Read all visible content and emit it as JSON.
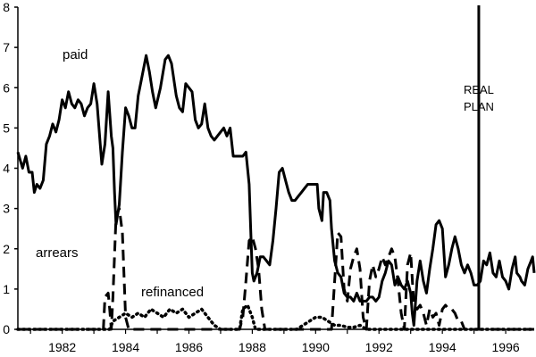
{
  "chart_data": {
    "type": "line",
    "title": "",
    "xlabel": "",
    "ylabel": "",
    "xlim": [
      1980.6,
      1996.9
    ],
    "ylim": [
      0,
      8
    ],
    "x_ticks": [
      1982,
      1984,
      1986,
      1988,
      1990,
      1992,
      1994,
      1996
    ],
    "y_ticks": [
      0,
      1,
      2,
      3,
      4,
      5,
      6,
      7,
      8
    ],
    "grid": false,
    "legend": "none",
    "series": [
      {
        "name": "paid",
        "style": "solid",
        "color": "#000000",
        "points": [
          [
            1980.6,
            4.4
          ],
          [
            1980.75,
            4.0
          ],
          [
            1980.85,
            4.3
          ],
          [
            1980.95,
            3.9
          ],
          [
            1981.05,
            3.9
          ],
          [
            1981.12,
            3.4
          ],
          [
            1981.2,
            3.6
          ],
          [
            1981.3,
            3.5
          ],
          [
            1981.4,
            3.7
          ],
          [
            1981.5,
            4.6
          ],
          [
            1981.6,
            4.8
          ],
          [
            1981.7,
            5.1
          ],
          [
            1981.8,
            4.9
          ],
          [
            1981.9,
            5.2
          ],
          [
            1982.0,
            5.7
          ],
          [
            1982.1,
            5.5
          ],
          [
            1982.2,
            5.9
          ],
          [
            1982.3,
            5.6
          ],
          [
            1982.4,
            5.5
          ],
          [
            1982.5,
            5.7
          ],
          [
            1982.6,
            5.6
          ],
          [
            1982.7,
            5.3
          ],
          [
            1982.8,
            5.5
          ],
          [
            1982.9,
            5.6
          ],
          [
            1983.0,
            6.1
          ],
          [
            1983.1,
            5.6
          ],
          [
            1983.2,
            4.6
          ],
          [
            1983.25,
            4.1
          ],
          [
            1983.35,
            4.6
          ],
          [
            1983.45,
            5.9
          ],
          [
            1983.55,
            4.8
          ],
          [
            1983.6,
            4.5
          ],
          [
            1983.65,
            3.4
          ],
          [
            1983.7,
            2.6
          ],
          [
            1983.8,
            3.1
          ],
          [
            1983.9,
            4.4
          ],
          [
            1984.0,
            5.5
          ],
          [
            1984.1,
            5.3
          ],
          [
            1984.2,
            5.0
          ],
          [
            1984.3,
            5.0
          ],
          [
            1984.4,
            5.8
          ],
          [
            1984.5,
            6.2
          ],
          [
            1984.65,
            6.8
          ],
          [
            1984.75,
            6.4
          ],
          [
            1984.85,
            5.9
          ],
          [
            1984.95,
            5.5
          ],
          [
            1985.1,
            6.0
          ],
          [
            1985.25,
            6.7
          ],
          [
            1985.35,
            6.8
          ],
          [
            1985.45,
            6.6
          ],
          [
            1985.6,
            5.8
          ],
          [
            1985.7,
            5.5
          ],
          [
            1985.8,
            5.4
          ],
          [
            1985.9,
            6.1
          ],
          [
            1986.0,
            6.0
          ],
          [
            1986.1,
            5.9
          ],
          [
            1986.2,
            5.2
          ],
          [
            1986.3,
            5.0
          ],
          [
            1986.4,
            5.1
          ],
          [
            1986.5,
            5.6
          ],
          [
            1986.6,
            5.0
          ],
          [
            1986.7,
            4.8
          ],
          [
            1986.8,
            4.7
          ],
          [
            1986.9,
            4.8
          ],
          [
            1987.0,
            4.9
          ],
          [
            1987.1,
            5.0
          ],
          [
            1987.2,
            4.8
          ],
          [
            1987.3,
            5.0
          ],
          [
            1987.4,
            4.3
          ],
          [
            1987.5,
            4.3
          ],
          [
            1987.6,
            4.3
          ],
          [
            1987.7,
            4.3
          ],
          [
            1987.8,
            4.4
          ],
          [
            1987.9,
            3.6
          ],
          [
            1987.95,
            2.5
          ],
          [
            1988.0,
            1.4
          ],
          [
            1988.05,
            1.2
          ],
          [
            1988.15,
            1.4
          ],
          [
            1988.25,
            1.8
          ],
          [
            1988.35,
            1.8
          ],
          [
            1988.45,
            1.7
          ],
          [
            1988.55,
            1.6
          ],
          [
            1988.65,
            2.2
          ],
          [
            1988.75,
            3.0
          ],
          [
            1988.85,
            3.9
          ],
          [
            1988.95,
            4.0
          ],
          [
            1989.05,
            3.7
          ],
          [
            1989.15,
            3.4
          ],
          [
            1989.25,
            3.2
          ],
          [
            1989.35,
            3.2
          ],
          [
            1989.45,
            3.3
          ],
          [
            1989.55,
            3.4
          ],
          [
            1989.65,
            3.5
          ],
          [
            1989.75,
            3.6
          ],
          [
            1989.85,
            3.6
          ],
          [
            1989.95,
            3.6
          ],
          [
            1990.05,
            3.6
          ],
          [
            1990.1,
            3.0
          ],
          [
            1990.2,
            2.7
          ],
          [
            1990.25,
            3.4
          ],
          [
            1990.35,
            3.4
          ],
          [
            1990.45,
            3.2
          ],
          [
            1990.5,
            2.5
          ],
          [
            1990.6,
            1.7
          ],
          [
            1990.7,
            1.4
          ],
          [
            1990.8,
            1.3
          ],
          [
            1990.9,
            0.9
          ],
          [
            1991.0,
            0.8
          ],
          [
            1991.1,
            0.8
          ],
          [
            1991.2,
            0.7
          ],
          [
            1991.3,
            0.9
          ],
          [
            1991.4,
            0.7
          ],
          [
            1991.5,
            0.7
          ],
          [
            1991.6,
            0.7
          ],
          [
            1991.7,
            0.8
          ],
          [
            1991.8,
            0.8
          ],
          [
            1991.9,
            0.7
          ],
          [
            1992.0,
            0.8
          ],
          [
            1992.1,
            1.2
          ],
          [
            1992.2,
            1.4
          ],
          [
            1992.3,
            1.7
          ],
          [
            1992.4,
            1.6
          ],
          [
            1992.5,
            1.1
          ],
          [
            1992.6,
            1.3
          ],
          [
            1992.7,
            1.1
          ],
          [
            1992.8,
            1.0
          ],
          [
            1992.9,
            1.2
          ],
          [
            1993.0,
            0.9
          ],
          [
            1993.05,
            0.4
          ],
          [
            1993.1,
            0.1
          ],
          [
            1993.2,
            1.2
          ],
          [
            1993.3,
            1.7
          ],
          [
            1993.4,
            1.2
          ],
          [
            1993.5,
            0.9
          ],
          [
            1993.6,
            1.5
          ],
          [
            1993.7,
            2.0
          ],
          [
            1993.8,
            2.6
          ],
          [
            1993.9,
            2.7
          ],
          [
            1994.0,
            2.5
          ],
          [
            1994.1,
            1.3
          ],
          [
            1994.2,
            1.6
          ],
          [
            1994.3,
            2.0
          ],
          [
            1994.4,
            2.3
          ],
          [
            1994.5,
            2.0
          ],
          [
            1994.6,
            1.6
          ],
          [
            1994.7,
            1.4
          ],
          [
            1994.8,
            1.6
          ],
          [
            1994.9,
            1.4
          ],
          [
            1995.0,
            1.1
          ],
          [
            1995.1,
            1.1
          ],
          [
            1995.2,
            1.2
          ],
          [
            1995.3,
            1.7
          ],
          [
            1995.4,
            1.6
          ],
          [
            1995.5,
            1.9
          ],
          [
            1995.6,
            1.4
          ],
          [
            1995.7,
            1.3
          ],
          [
            1995.8,
            1.7
          ],
          [
            1995.9,
            1.3
          ],
          [
            1996.0,
            1.2
          ],
          [
            1996.1,
            1.0
          ],
          [
            1996.2,
            1.5
          ],
          [
            1996.3,
            1.8
          ],
          [
            1996.35,
            1.4
          ],
          [
            1996.45,
            1.3
          ],
          [
            1996.5,
            1.2
          ],
          [
            1996.6,
            1.1
          ],
          [
            1996.7,
            1.5
          ],
          [
            1996.8,
            1.7
          ],
          [
            1996.85,
            1.8
          ],
          [
            1996.9,
            1.4
          ]
        ]
      },
      {
        "name": "arrears",
        "style": "dashed",
        "color": "#000000",
        "points": [
          [
            1980.6,
            0
          ],
          [
            1983.3,
            0
          ],
          [
            1983.35,
            0.8
          ],
          [
            1983.45,
            0.9
          ],
          [
            1983.5,
            0.5
          ],
          [
            1983.55,
            0
          ],
          [
            1983.6,
            0.8
          ],
          [
            1983.7,
            2.8
          ],
          [
            1983.8,
            3.0
          ],
          [
            1983.9,
            2.4
          ],
          [
            1984.0,
            0.3
          ],
          [
            1984.1,
            0
          ],
          [
            1987.6,
            0
          ],
          [
            1987.7,
            0.3
          ],
          [
            1987.8,
            1.2
          ],
          [
            1987.9,
            2.2
          ],
          [
            1988.0,
            2.3
          ],
          [
            1988.1,
            2.0
          ],
          [
            1988.2,
            1.5
          ],
          [
            1988.3,
            0.5
          ],
          [
            1988.4,
            0
          ],
          [
            1990.5,
            0
          ],
          [
            1990.6,
            1.2
          ],
          [
            1990.7,
            2.4
          ],
          [
            1990.8,
            2.3
          ],
          [
            1990.9,
            1.0
          ],
          [
            1991.0,
            0.7
          ],
          [
            1991.1,
            1.5
          ],
          [
            1991.2,
            1.8
          ],
          [
            1991.3,
            2.0
          ],
          [
            1991.4,
            1.5
          ],
          [
            1991.5,
            0.3
          ],
          [
            1991.6,
            0
          ],
          [
            1991.7,
            1.2
          ],
          [
            1991.8,
            1.6
          ],
          [
            1991.9,
            1.3
          ],
          [
            1992.0,
            1.5
          ],
          [
            1992.1,
            1.8
          ],
          [
            1992.2,
            1.6
          ],
          [
            1992.3,
            1.8
          ],
          [
            1992.4,
            2.0
          ],
          [
            1992.5,
            1.8
          ],
          [
            1992.6,
            1.2
          ],
          [
            1992.7,
            0.4
          ],
          [
            1992.8,
            0
          ],
          [
            1992.9,
            1.6
          ],
          [
            1993.0,
            1.9
          ],
          [
            1993.1,
            0.6
          ],
          [
            1993.2,
            0.5
          ],
          [
            1993.3,
            0.6
          ],
          [
            1993.4,
            0.4
          ],
          [
            1993.5,
            0.1
          ],
          [
            1993.6,
            0.5
          ],
          [
            1993.7,
            0.3
          ],
          [
            1993.8,
            0.4
          ],
          [
            1993.9,
            0.1
          ],
          [
            1994.0,
            0.5
          ],
          [
            1994.1,
            0.6
          ],
          [
            1994.2,
            0.5
          ],
          [
            1994.3,
            0.5
          ],
          [
            1994.4,
            0.4
          ],
          [
            1994.5,
            0.2
          ],
          [
            1994.6,
            0.2
          ],
          [
            1994.7,
            0
          ],
          [
            1996.9,
            0
          ]
        ]
      },
      {
        "name": "refinanced",
        "style": "dotted",
        "color": "#000000",
        "points": [
          [
            1980.6,
            0
          ],
          [
            1983.5,
            0
          ],
          [
            1983.6,
            0.2
          ],
          [
            1983.8,
            0.3
          ],
          [
            1984.0,
            0.4
          ],
          [
            1984.2,
            0.3
          ],
          [
            1984.4,
            0.4
          ],
          [
            1984.6,
            0.3
          ],
          [
            1984.8,
            0.5
          ],
          [
            1985.0,
            0.4
          ],
          [
            1985.2,
            0.3
          ],
          [
            1985.4,
            0.5
          ],
          [
            1985.6,
            0.4
          ],
          [
            1985.8,
            0.5
          ],
          [
            1986.0,
            0.3
          ],
          [
            1986.2,
            0.4
          ],
          [
            1986.4,
            0.5
          ],
          [
            1986.6,
            0.3
          ],
          [
            1986.8,
            0.1
          ],
          [
            1987.0,
            0
          ],
          [
            1987.6,
            0
          ],
          [
            1987.7,
            0.5
          ],
          [
            1987.85,
            0.6
          ],
          [
            1988.0,
            0.3
          ],
          [
            1988.1,
            0
          ],
          [
            1989.4,
            0
          ],
          [
            1989.6,
            0.1
          ],
          [
            1989.8,
            0.2
          ],
          [
            1990.0,
            0.3
          ],
          [
            1990.2,
            0.3
          ],
          [
            1990.4,
            0.2
          ],
          [
            1990.6,
            0.1
          ],
          [
            1990.8,
            0.1
          ],
          [
            1991.0,
            0.05
          ],
          [
            1991.2,
            0.05
          ],
          [
            1991.4,
            0.1
          ],
          [
            1991.6,
            0
          ],
          [
            1996.9,
            0
          ]
        ]
      }
    ],
    "annotations": {
      "paid": "paid",
      "arrears": "arrears",
      "refinanced": "refinanced",
      "vline_x": 1995.15,
      "vline_label_line1": "REAL",
      "vline_label_line2": "PLAN"
    }
  }
}
